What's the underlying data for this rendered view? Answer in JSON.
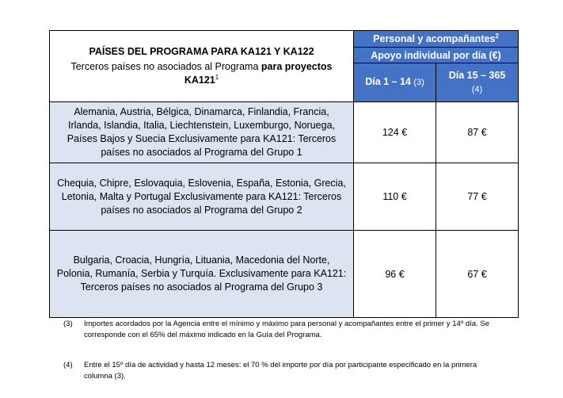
{
  "header": {
    "title": "PAÍSES DEL PROGRAMA PARA KA121 Y KA122",
    "subtitle_normal": "Terceros países no asociados al Programa ",
    "subtitle_bold": "para proyectos KA121",
    "subtitle_sup": "1",
    "group_label": "Personal y acompañantes",
    "group_sup": "2",
    "support_label": "Apoyo individual por día (€)",
    "col1_label": "Día 1 – 14",
    "col1_ref": "(3)",
    "col2_label": "Día 15 – 365",
    "col2_ref": "(4)"
  },
  "rows": [
    {
      "countries": "Alemania, Austria, Bélgica, Dinamarca, Finlandia, Francia, Irlanda, Islandia, Italia, Liechtenstein, Luxemburgo, Noruega, Países Bajos y Suecia Exclusivamente para KA121: Terceros países no asociados al Programa del Grupo 1",
      "day1_14": "124 €",
      "day15_365": "87 €"
    },
    {
      "countries": "Chequia, Chipre, Eslovaquia, Eslovenia, España, Estonia, Grecia, Letonia, Malta y Portugal Exclusivamente para KA121: Terceros países no asociados al Programa del Grupo 2",
      "day1_14": "110 €",
      "day15_365": "77 €"
    },
    {
      "countries": "Bulgaria, Croacia, Hungría, Lituania, Macedonia del Norte, Polonia, Rumanía, Serbia y Turquía. Exclusivamente para KA121: Terceros países no asociados al Programa del Grupo 3",
      "day1_14": "96 €",
      "day15_365": "67 €"
    }
  ],
  "notes": [
    {
      "num": "(3)",
      "text": "Importes acordados por la Agencia entre el mínimo y máximo para personal y acompañantes entre el primer y 14º día. Se corresponde con el 65% del máximo indicado en la Guía del Programa."
    },
    {
      "num": "(4)",
      "text": "Entre el 15º día de actividad y hasta 12 meses: el 70 % del importe por día por participante especificado en la primera columna (3)."
    }
  ]
}
